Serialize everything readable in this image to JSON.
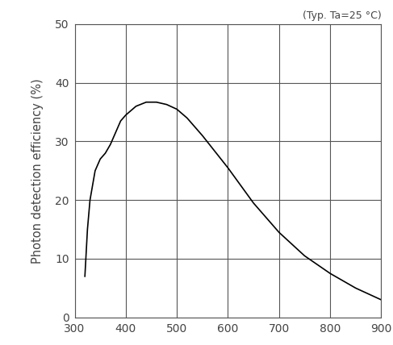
{
  "chart_data": {
    "type": "line",
    "annotation": "(Typ. Ta=25 °C)",
    "y_label": "Photon detection efficiency (%)",
    "x": [
      320,
      325,
      330,
      340,
      350,
      360,
      370,
      380,
      390,
      400,
      420,
      440,
      460,
      480,
      500,
      520,
      550,
      600,
      650,
      700,
      750,
      800,
      850,
      900
    ],
    "values": [
      7,
      15,
      20,
      25,
      27,
      28,
      29.5,
      31.5,
      33.5,
      34.5,
      36,
      36.7,
      36.7,
      36.3,
      35.5,
      34,
      31,
      25.5,
      19.5,
      14.5,
      10.5,
      7.5,
      5,
      3
    ],
    "color": "#000000",
    "xlim": [
      300,
      900
    ],
    "xticks": [
      300,
      400,
      500,
      600,
      700,
      800,
      900
    ],
    "ylim": [
      0,
      50
    ],
    "yticks": [
      0,
      10,
      20,
      30,
      40,
      50
    ],
    "grid": true
  }
}
